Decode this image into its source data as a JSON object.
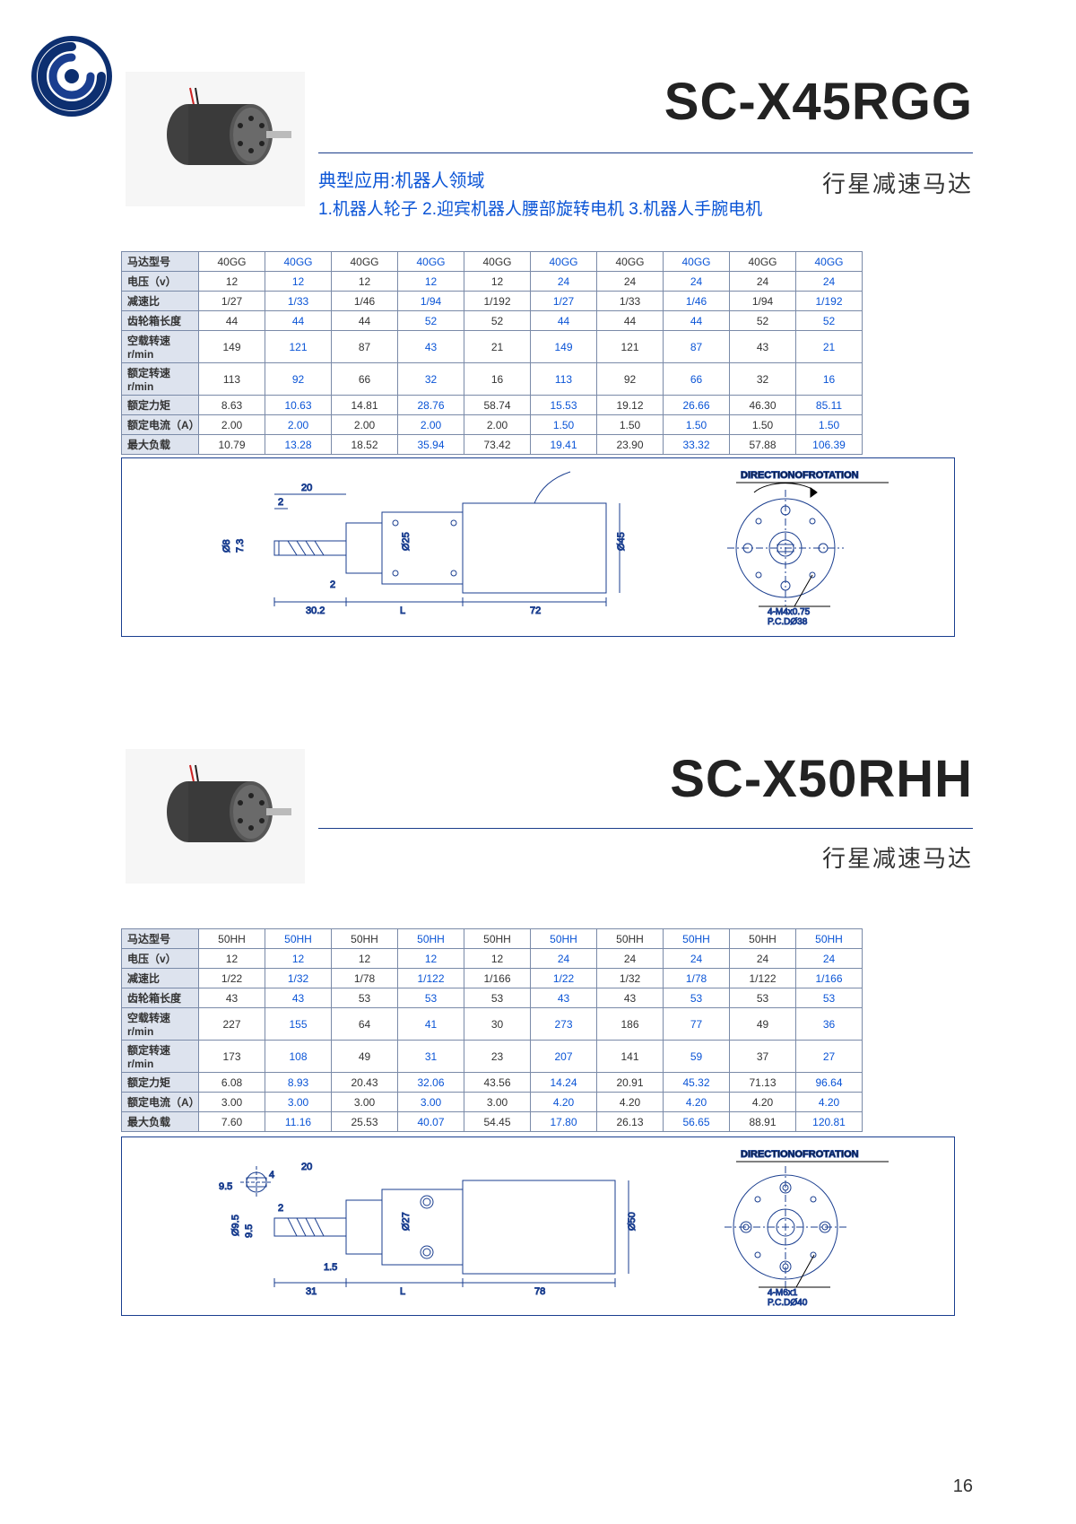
{
  "pagenum": "16",
  "logo_colors": {
    "outer": "#0d2f70",
    "inner": "#1a3e8f"
  },
  "products": [
    {
      "title": "SC-X45RGG",
      "subtitle": "行星减速马达",
      "app_label": "典型应用:机器人领域",
      "app_detail": "1.机器人轮子 2.迎宾机器人腰部旋转电机 3.机器人手腕电机",
      "table": {
        "row_labels": [
          "马达型号",
          "电压（v）",
          "减速比",
          "齿轮箱长度",
          "空载转速r/min",
          "额定转速r/min",
          "额定力矩",
          "额定电流（A）",
          "最大负载"
        ],
        "cols": [
          {
            "vals": [
              "40GG",
              "12",
              "1/27",
              "44",
              "149",
              "113",
              "8.63",
              "2.00",
              "10.79"
            ],
            "blue": false
          },
          {
            "vals": [
              "40GG",
              "12",
              "1/33",
              "44",
              "121",
              "92",
              "10.63",
              "2.00",
              "13.28"
            ],
            "blue": true
          },
          {
            "vals": [
              "40GG",
              "12",
              "1/46",
              "44",
              "87",
              "66",
              "14.81",
              "2.00",
              "18.52"
            ],
            "blue": false
          },
          {
            "vals": [
              "40GG",
              "12",
              "1/94",
              "52",
              "43",
              "32",
              "28.76",
              "2.00",
              "35.94"
            ],
            "blue": true
          },
          {
            "vals": [
              "40GG",
              "12",
              "1/192",
              "52",
              "21",
              "16",
              "58.74",
              "2.00",
              "73.42"
            ],
            "blue": false
          },
          {
            "vals": [
              "40GG",
              "24",
              "1/27",
              "44",
              "149",
              "113",
              "15.53",
              "1.50",
              "19.41"
            ],
            "blue": true
          },
          {
            "vals": [
              "40GG",
              "24",
              "1/33",
              "44",
              "121",
              "92",
              "19.12",
              "1.50",
              "23.90"
            ],
            "blue": false
          },
          {
            "vals": [
              "40GG",
              "24",
              "1/46",
              "44",
              "87",
              "66",
              "26.66",
              "1.50",
              "33.32"
            ],
            "blue": true
          },
          {
            "vals": [
              "40GG",
              "24",
              "1/94",
              "52",
              "43",
              "32",
              "46.30",
              "1.50",
              "57.88"
            ],
            "blue": false
          },
          {
            "vals": [
              "40GG",
              "24",
              "1/192",
              "52",
              "21",
              "16",
              "85.11",
              "1.50",
              "106.39"
            ],
            "blue": true
          }
        ]
      },
      "diagram": {
        "rotation_label": "DIRECTIONOFROTATION",
        "bolt_label": "4-M4x0.75",
        "pcd_label": "P.C.DØ38",
        "dims": {
          "shaft_len": "20",
          "flat": "2",
          "step": "2",
          "hub": "30.2",
          "gear": "L",
          "body": "72",
          "shaft_dia": "Ø8",
          "shaft_h": "7.3",
          "hub_dia": "Ø25",
          "body_dia": "Ø45"
        }
      }
    },
    {
      "title": "SC-X50RHH",
      "subtitle": "行星减速马达",
      "table": {
        "row_labels": [
          "马达型号",
          "电压（v）",
          "减速比",
          "齿轮箱长度",
          "空载转速r/min",
          "额定转速r/min",
          "额定力矩",
          "额定电流（A）",
          "最大负载"
        ],
        "cols": [
          {
            "vals": [
              "50HH",
              "12",
              "1/22",
              "43",
              "227",
              "173",
              "6.08",
              "3.00",
              "7.60"
            ],
            "blue": false
          },
          {
            "vals": [
              "50HH",
              "12",
              "1/32",
              "43",
              "155",
              "108",
              "8.93",
              "3.00",
              "11.16"
            ],
            "blue": true
          },
          {
            "vals": [
              "50HH",
              "12",
              "1/78",
              "53",
              "64",
              "49",
              "20.43",
              "3.00",
              "25.53"
            ],
            "blue": false
          },
          {
            "vals": [
              "50HH",
              "12",
              "1/122",
              "53",
              "41",
              "31",
              "32.06",
              "3.00",
              "40.07"
            ],
            "blue": true
          },
          {
            "vals": [
              "50HH",
              "12",
              "1/166",
              "53",
              "30",
              "23",
              "43.56",
              "3.00",
              "54.45"
            ],
            "blue": false
          },
          {
            "vals": [
              "50HH",
              "24",
              "1/22",
              "43",
              "273",
              "207",
              "14.24",
              "4.20",
              "17.80"
            ],
            "blue": true
          },
          {
            "vals": [
              "50HH",
              "24",
              "1/32",
              "43",
              "186",
              "141",
              "20.91",
              "4.20",
              "26.13"
            ],
            "blue": false
          },
          {
            "vals": [
              "50HH",
              "24",
              "1/78",
              "53",
              "77",
              "59",
              "45.32",
              "4.20",
              "56.65"
            ],
            "blue": true
          },
          {
            "vals": [
              "50HH",
              "24",
              "1/122",
              "53",
              "49",
              "37",
              "71.13",
              "4.20",
              "88.91"
            ],
            "blue": false
          },
          {
            "vals": [
              "50HH",
              "24",
              "1/166",
              "53",
              "36",
              "27",
              "96.64",
              "4.20",
              "120.81"
            ],
            "blue": true
          }
        ]
      },
      "diagram": {
        "rotation_label": "DIRECTIONOFROTATION",
        "bolt_label": "4-M6x1",
        "pcd_label": "P.C.DØ40",
        "dims": {
          "shaft_len": "20",
          "flat": "2",
          "step": "1.5",
          "hub": "31",
          "gear": "L",
          "body": "78",
          "shaft_dia": "Ø9.5",
          "shaft_h": "9.5",
          "hub_dia": "Ø27",
          "body_dia": "Ø50",
          "key": "9.5",
          "keyh": "4"
        }
      }
    }
  ]
}
